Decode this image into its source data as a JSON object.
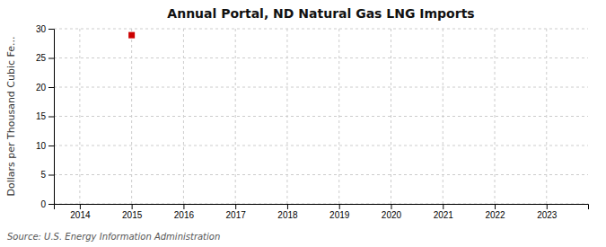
{
  "chart_data": {
    "type": "scatter",
    "title": "Annual Portal, ND Natural Gas LNG Imports",
    "ylabel": "Dollars per Thousand Cubic Fe...",
    "x": [
      2015
    ],
    "values": [
      28.9
    ],
    "color": "#cc0000",
    "marker": "square",
    "xlim": [
      2013.5,
      2023.8
    ],
    "ylim": [
      0,
      30
    ],
    "xticks": [
      2014,
      2015,
      2016,
      2017,
      2018,
      2019,
      2020,
      2021,
      2022,
      2023
    ],
    "yticks": [
      0,
      5,
      10,
      15,
      20,
      25,
      30
    ],
    "grid": true,
    "source": "Source: U.S. Energy Information Administration"
  }
}
